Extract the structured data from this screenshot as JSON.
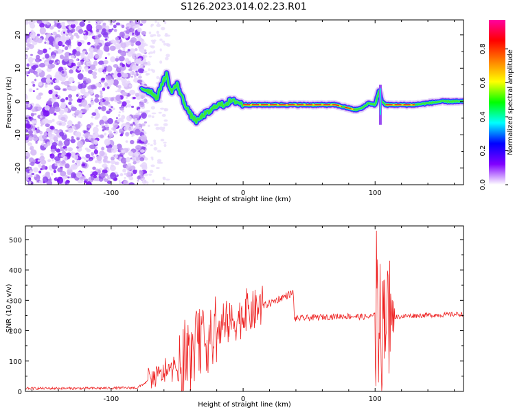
{
  "figure": {
    "title": "S126.2023.014.02.23.R01"
  },
  "chart_data": [
    {
      "type": "heatmap",
      "xlabel": "Height of straight line (km)",
      "ylabel": "Frequency (Hz)",
      "xlim": [
        -165,
        167
      ],
      "ylim": [
        -25,
        24.5
      ],
      "xticks": [
        -100,
        0,
        100
      ],
      "yticks": [
        -20,
        -10,
        0,
        10,
        20
      ],
      "colorbar": {
        "label": "Normalized spectral amplitude",
        "range": [
          0,
          0.97
        ],
        "ticks": [
          "0.0",
          "0.2",
          "0.4",
          "0.6",
          "0.8"
        ],
        "colors": [
          "#ffffff",
          "#8000ff",
          "#0000ff",
          "#00ffff",
          "#00ff00",
          "#ffff00",
          "#ff8000",
          "#ff0000",
          "#ff00a0"
        ]
      },
      "noise_region_km": [
        -165,
        -77
      ],
      "ridge_frequency": [
        [
          -77,
          4
        ],
        [
          -70,
          3
        ],
        [
          -65,
          1
        ],
        [
          -62,
          5
        ],
        [
          -58,
          8
        ],
        [
          -55,
          3
        ],
        [
          -50,
          5
        ],
        [
          -45,
          0
        ],
        [
          -40,
          -4
        ],
        [
          -35,
          -6
        ],
        [
          -30,
          -4
        ],
        [
          -25,
          -3
        ],
        [
          -20,
          -1
        ],
        [
          -15,
          -1
        ],
        [
          -10,
          0
        ],
        [
          -5,
          0
        ],
        [
          0,
          -1
        ],
        [
          10,
          -1
        ],
        [
          30,
          -1
        ],
        [
          60,
          -1
        ],
        [
          70,
          -1
        ],
        [
          75,
          -1.5
        ],
        [
          80,
          -2
        ],
        [
          85,
          -2.5
        ],
        [
          90,
          -2
        ],
        [
          95,
          -0.5
        ],
        [
          100,
          -1
        ],
        [
          103,
          3
        ],
        [
          105,
          0
        ],
        [
          108,
          -1
        ],
        [
          130,
          -1
        ],
        [
          150,
          0
        ],
        [
          167,
          0
        ]
      ],
      "ridge_peak_range_km": [
        0,
        75
      ]
    },
    {
      "type": "line",
      "xlabel": "Height of straight line (km)",
      "ylabel": "SNR (10 * v/v)",
      "xlim": [
        -165,
        167
      ],
      "ylim": [
        0,
        545
      ],
      "xticks": [
        -100,
        0,
        100
      ],
      "yticks": [
        0,
        100,
        200,
        300,
        400,
        500
      ],
      "series": [
        {
          "color": "#ee2222",
          "x": [
            -165,
            -120,
            -80,
            -70,
            -60,
            -50,
            -40,
            -35,
            -30,
            -25,
            -20,
            -10,
            0,
            10,
            20,
            30,
            38,
            39,
            40,
            60,
            80,
            95,
            100,
            103,
            105,
            108,
            110,
            112,
            115,
            130,
            150,
            167
          ],
          "y": [
            10,
            10,
            12,
            40,
            60,
            70,
            110,
            160,
            175,
            160,
            190,
            225,
            245,
            270,
            290,
            310,
            325,
            235,
            240,
            245,
            248,
            245,
            250,
            300,
            180,
            320,
            200,
            260,
            245,
            250,
            252,
            255
          ]
        }
      ]
    }
  ]
}
